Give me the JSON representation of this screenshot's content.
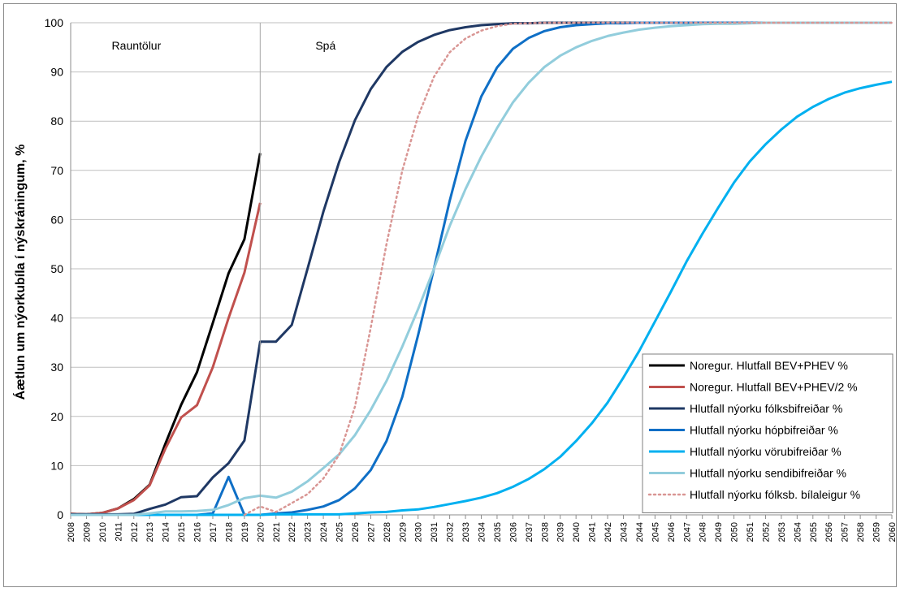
{
  "chart_data": {
    "type": "line",
    "title": "",
    "xlabel": "",
    "ylabel": "Áætlun um nýorkubíla í nýskráningum, %",
    "ylim": [
      0,
      100
    ],
    "yticks": [
      0,
      10,
      20,
      30,
      40,
      50,
      60,
      70,
      80,
      90,
      100
    ],
    "x_categories": [
      "2008",
      "2009",
      "2010",
      "2011",
      "2012",
      "2013",
      "2014",
      "2015",
      "2016",
      "2017",
      "2018",
      "2019",
      "2020",
      "2021",
      "2022",
      "2023",
      "2024",
      "2025",
      "2026",
      "2027",
      "2028",
      "2029",
      "2030",
      "2031",
      "2032",
      "2033",
      "2034",
      "2035",
      "2036",
      "2037",
      "2038",
      "2039",
      "2040",
      "2041",
      "2042",
      "2043",
      "2044",
      "2045",
      "2046",
      "2047",
      "2048",
      "2049",
      "2050",
      "2051",
      "2052",
      "2053",
      "2054",
      "2055",
      "2056",
      "2057",
      "2058",
      "2059",
      "2060"
    ],
    "grid": "horizontal",
    "legend_position": "bottom-right",
    "annotations": [
      {
        "text": "Rauntölur",
        "at_year": 2010.6
      },
      {
        "text": "Spá",
        "at_year": 2023.5
      }
    ],
    "divider_year": 2020,
    "series": [
      {
        "name": "Noregur. Hlutfall BEV+PHEV %",
        "color": "#000000",
        "dash": "solid",
        "x": [
          2008,
          2009,
          2010,
          2011,
          2012,
          2013,
          2014,
          2015,
          2016,
          2017,
          2018,
          2019,
          2020
        ],
        "y": [
          0.2,
          0.1,
          0.4,
          1.3,
          3.2,
          6.1,
          14.5,
          22.4,
          29.0,
          39.0,
          49.1,
          56.0,
          73.5
        ]
      },
      {
        "name": "Noregur. Hlutfall BEV+PHEV/2 %",
        "color": "#c0504d",
        "dash": "solid",
        "x": [
          2008,
          2009,
          2010,
          2011,
          2012,
          2013,
          2014,
          2015,
          2016,
          2017,
          2018,
          2019,
          2020
        ],
        "y": [
          0.2,
          0.1,
          0.4,
          1.3,
          3.0,
          6.0,
          13.5,
          19.8,
          22.3,
          30.0,
          40.0,
          49.2,
          63.4
        ]
      },
      {
        "name": "Hlutfall nýorku fólksbifreiðar  %",
        "color": "#1f3864",
        "dash": "solid",
        "x": [
          2008,
          2009,
          2010,
          2011,
          2012,
          2013,
          2014,
          2015,
          2016,
          2017,
          2018,
          2019,
          2020,
          2021,
          2022,
          2023,
          2024,
          2025,
          2026,
          2027,
          2028,
          2029,
          2030,
          2031,
          2032,
          2033,
          2034,
          2035,
          2036,
          2037,
          2038,
          2039,
          2040,
          2041,
          2042,
          2043,
          2044,
          2045,
          2046,
          2047,
          2048,
          2049,
          2050,
          2051,
          2052,
          2053,
          2054,
          2055,
          2056,
          2057,
          2058,
          2059,
          2060
        ],
        "y": [
          0.1,
          0.1,
          0.1,
          0.1,
          0.2,
          1.2,
          2.1,
          3.6,
          3.8,
          7.6,
          10.5,
          15.1,
          35.2,
          35.2,
          38.6,
          50.0,
          61.6,
          71.7,
          80.2,
          86.5,
          91.0,
          94.1,
          96.1,
          97.5,
          98.5,
          99.1,
          99.5,
          99.7,
          99.9,
          99.9,
          100,
          100,
          100,
          100,
          100,
          100,
          100,
          100,
          100,
          100,
          100,
          100,
          100,
          100,
          100,
          100,
          100,
          100,
          100,
          100,
          100,
          100,
          100
        ]
      },
      {
        "name": "Hlutfall nýorku hópbifreiðar %",
        "color": "#0f6fc6",
        "dash": "solid",
        "x": [
          2008,
          2009,
          2010,
          2011,
          2012,
          2013,
          2014,
          2015,
          2016,
          2017,
          2018,
          2019,
          2020,
          2021,
          2022,
          2023,
          2024,
          2025,
          2026,
          2027,
          2028,
          2029,
          2030,
          2031,
          2032,
          2033,
          2034,
          2035,
          2036,
          2037,
          2038,
          2039,
          2040,
          2041,
          2042,
          2043,
          2044,
          2045,
          2046,
          2047,
          2048,
          2049,
          2050,
          2051,
          2052,
          2053,
          2054,
          2055,
          2056,
          2057,
          2058,
          2059,
          2060
        ],
        "y": [
          0,
          0,
          0,
          0,
          0,
          0,
          0,
          0,
          0,
          0.3,
          7.7,
          0,
          0,
          0.3,
          0.5,
          1.0,
          1.7,
          3.0,
          5.4,
          9.1,
          15.0,
          24.0,
          36.5,
          50.0,
          63.8,
          76.0,
          85.0,
          90.9,
          94.7,
          96.9,
          98.3,
          99.1,
          99.5,
          99.7,
          99.9,
          99.9,
          100,
          100,
          100,
          100,
          100,
          100,
          100,
          100,
          100,
          100,
          100,
          100,
          100,
          100,
          100,
          100,
          100
        ]
      },
      {
        "name": "Hlutfall nýorku vörubifreiðar %",
        "color": "#00b0f0",
        "dash": "solid",
        "x": [
          2008,
          2009,
          2010,
          2011,
          2012,
          2013,
          2014,
          2015,
          2016,
          2017,
          2018,
          2019,
          2020,
          2021,
          2022,
          2023,
          2024,
          2025,
          2026,
          2027,
          2028,
          2029,
          2030,
          2031,
          2032,
          2033,
          2034,
          2035,
          2036,
          2037,
          2038,
          2039,
          2040,
          2041,
          2042,
          2043,
          2044,
          2045,
          2046,
          2047,
          2048,
          2049,
          2050,
          2051,
          2052,
          2053,
          2054,
          2055,
          2056,
          2057,
          2058,
          2059,
          2060
        ],
        "y": [
          0,
          0,
          0,
          0,
          0,
          0,
          0,
          0,
          0,
          0,
          0,
          0,
          0,
          0.1,
          0.1,
          0.1,
          0.1,
          0.1,
          0.3,
          0.5,
          0.6,
          0.9,
          1.1,
          1.6,
          2.2,
          2.8,
          3.5,
          4.4,
          5.7,
          7.3,
          9.3,
          11.8,
          15.0,
          18.6,
          22.8,
          27.9,
          33.3,
          39.3,
          45.3,
          51.5,
          57.1,
          62.4,
          67.5,
          71.8,
          75.3,
          78.3,
          80.9,
          82.9,
          84.5,
          85.8,
          86.7,
          87.4,
          88.0
        ]
      },
      {
        "name": "Hlutfall nýorku sendibifreiðar %",
        "color": "#92cddc",
        "dash": "solid",
        "x": [
          2008,
          2009,
          2010,
          2011,
          2012,
          2013,
          2014,
          2015,
          2016,
          2017,
          2018,
          2019,
          2020,
          2021,
          2022,
          2023,
          2024,
          2025,
          2026,
          2027,
          2028,
          2029,
          2030,
          2031,
          2032,
          2033,
          2034,
          2035,
          2036,
          2037,
          2038,
          2039,
          2040,
          2041,
          2042,
          2043,
          2044,
          2045,
          2046,
          2047,
          2048,
          2049,
          2050,
          2051,
          2052,
          2053,
          2054,
          2055,
          2056,
          2057,
          2058,
          2059,
          2060
        ],
        "y": [
          0,
          0,
          0,
          0,
          0,
          0.3,
          0.7,
          0.7,
          0.8,
          1.0,
          2.0,
          3.4,
          3.9,
          3.5,
          4.7,
          6.8,
          9.5,
          12.3,
          16.2,
          21.3,
          27.2,
          34.2,
          41.8,
          50.0,
          58.7,
          66.2,
          72.8,
          78.6,
          83.8,
          87.8,
          91.0,
          93.3,
          95.0,
          96.3,
          97.3,
          98.0,
          98.6,
          99.0,
          99.3,
          99.5,
          99.7,
          99.8,
          99.8,
          99.9,
          100,
          100,
          100,
          100,
          100,
          100,
          100,
          100,
          100
        ]
      },
      {
        "name": "Hlutfall nýorku fólksb. bílaleigur %",
        "color": "#d99694",
        "dash": "dotted",
        "x": [
          2019,
          2020,
          2021,
          2022,
          2023,
          2024,
          2025,
          2026,
          2027,
          2028,
          2029,
          2030,
          2031,
          2032,
          2033,
          2034,
          2035,
          2036,
          2037,
          2038,
          2039,
          2040,
          2041,
          2042,
          2043,
          2044,
          2045,
          2046,
          2047,
          2048,
          2049,
          2050,
          2051,
          2052,
          2053,
          2054,
          2055,
          2056,
          2057,
          2058,
          2059,
          2060
        ],
        "y": [
          0,
          1.7,
          0.6,
          2.4,
          4.2,
          7.4,
          12.2,
          22.0,
          38.0,
          55.0,
          70.0,
          81.0,
          89.0,
          94.0,
          96.8,
          98.4,
          99.3,
          99.8,
          99.9,
          100,
          100,
          100,
          100,
          100,
          100,
          100,
          100,
          100,
          100,
          100,
          100,
          100,
          100,
          100,
          100,
          100,
          100,
          100,
          100,
          100,
          100,
          100
        ]
      }
    ]
  }
}
